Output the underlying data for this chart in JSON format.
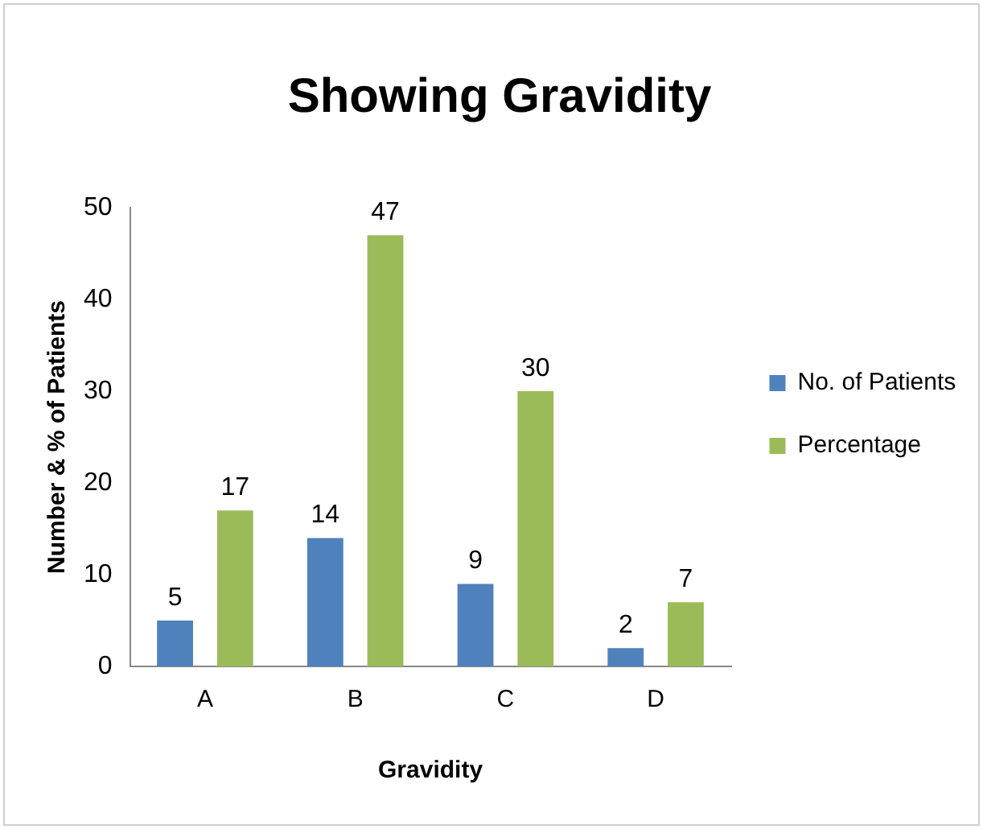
{
  "chart_data": {
    "type": "bar",
    "title": "Showing Gravidity",
    "xlabel": "Gravidity",
    "ylabel": "Number & % of Patients",
    "categories": [
      "A",
      "B",
      "C",
      "D"
    ],
    "series": [
      {
        "name": "No. of Patients",
        "color": "#4f81bd",
        "values": [
          5,
          14,
          9,
          2
        ]
      },
      {
        "name": "Percentage",
        "color": "#9bbb59",
        "values": [
          17,
          47,
          30,
          7
        ]
      }
    ],
    "ylim": [
      0,
      50
    ],
    "yticks": [
      0,
      10,
      20,
      30,
      40,
      50
    ],
    "grid": false,
    "legend": "right",
    "data_labels": true
  }
}
